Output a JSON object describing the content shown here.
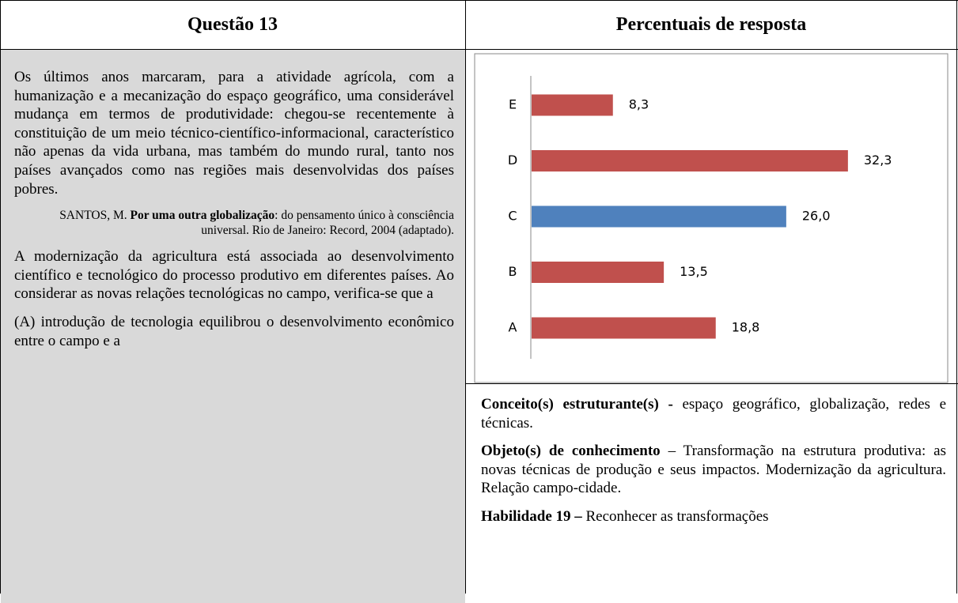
{
  "header": {
    "left": "Questão 13",
    "right": "Percentuais de resposta"
  },
  "passage": "Os últimos anos marcaram, para a atividade agrícola, com a humanização e a mecanização do espaço geográfico, uma considerável mudança em termos de produtividade: chegou-se recentemente à constituição de um meio técnico-científico-informacional, característico não apenas da vida urbana, mas também do mundo rural, tanto nos países avançados como nas regiões mais desenvolvidas dos países pobres.",
  "source": {
    "author": "SANTOS, M.",
    "title": "Por uma outra globalização",
    "rest": ": do pensamento único à consciência universal. Rio de Janeiro: Record, 2004 (adaptado)."
  },
  "stem": "A modernização da agricultura está associada ao desenvolvimento científico e tecnológico do processo produtivo em diferentes países. Ao considerar as novas relações tecnológicas no campo, verifica-se que a",
  "options": [
    "(A) introdução de tecnologia equilibrou o desenvolvimento econômico entre o campo e a"
  ],
  "chart_data": {
    "type": "bar",
    "orientation": "horizontal",
    "categories": [
      "A",
      "B",
      "C",
      "D",
      "E"
    ],
    "values": [
      18.8,
      13.5,
      26.0,
      32.3,
      8.3
    ],
    "value_labels": [
      "18,8",
      "13,5",
      "26,0",
      "32,3",
      "8,3"
    ],
    "colors": [
      "#c0504d",
      "#c0504d",
      "#4f81bd",
      "#c0504d",
      "#c0504d"
    ]
  },
  "info": [
    {
      "label": "Conceito(s) estruturante(s) -",
      "text": "espaço geográfico, globalização, redes e técnicas."
    },
    {
      "label": "Objeto(s) de conhecimento",
      "text": "– Transformação na estrutura produtiva: as novas técnicas de produção e seus impactos. Modernização da agricultura. Relação campo-cidade."
    },
    {
      "label": "Habilidade 19 –",
      "text": "Reconhecer as transformações"
    }
  ]
}
